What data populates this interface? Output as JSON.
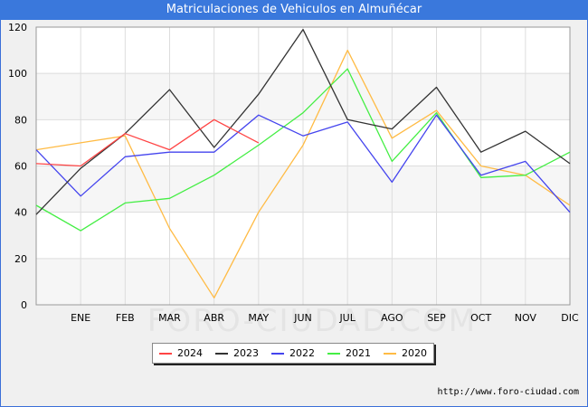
{
  "chart_data": {
    "type": "line",
    "title": "Matriculaciones de Vehiculos en Almuñécar",
    "categories": [
      "",
      "ENE",
      "FEB",
      "MAR",
      "ABR",
      "MAY",
      "JUN",
      "JUL",
      "AGO",
      "SEP",
      "OCT",
      "NOV",
      "DIC"
    ],
    "ylim": [
      0,
      120
    ],
    "yticks": [
      0,
      20,
      40,
      60,
      80,
      100,
      120
    ],
    "grid": true,
    "legend_position": "bottom",
    "watermark": "FORO-CIUDAD.COM",
    "source": "http://www.foro-ciudad.com",
    "series": [
      {
        "name": "2024",
        "color": "#ff4444",
        "values": [
          61,
          60,
          74,
          67,
          80,
          70,
          null,
          null,
          null,
          null,
          null,
          null,
          null
        ]
      },
      {
        "name": "2023",
        "color": "#333333",
        "values": [
          39,
          59,
          74,
          93,
          68,
          91,
          119,
          80,
          76,
          94,
          66,
          75,
          61
        ]
      },
      {
        "name": "2022",
        "color": "#4444ee",
        "values": [
          67,
          47,
          64,
          66,
          66,
          82,
          73,
          79,
          53,
          82,
          56,
          62,
          40
        ]
      },
      {
        "name": "2021",
        "color": "#44ee44",
        "values": [
          43,
          32,
          44,
          46,
          56,
          69,
          83,
          102,
          62,
          83,
          55,
          56,
          66
        ]
      },
      {
        "name": "2020",
        "color": "#ffbb44",
        "values": [
          67,
          70,
          73,
          33,
          3,
          40,
          69,
          110,
          72,
          84,
          60,
          56,
          43
        ]
      }
    ]
  }
}
